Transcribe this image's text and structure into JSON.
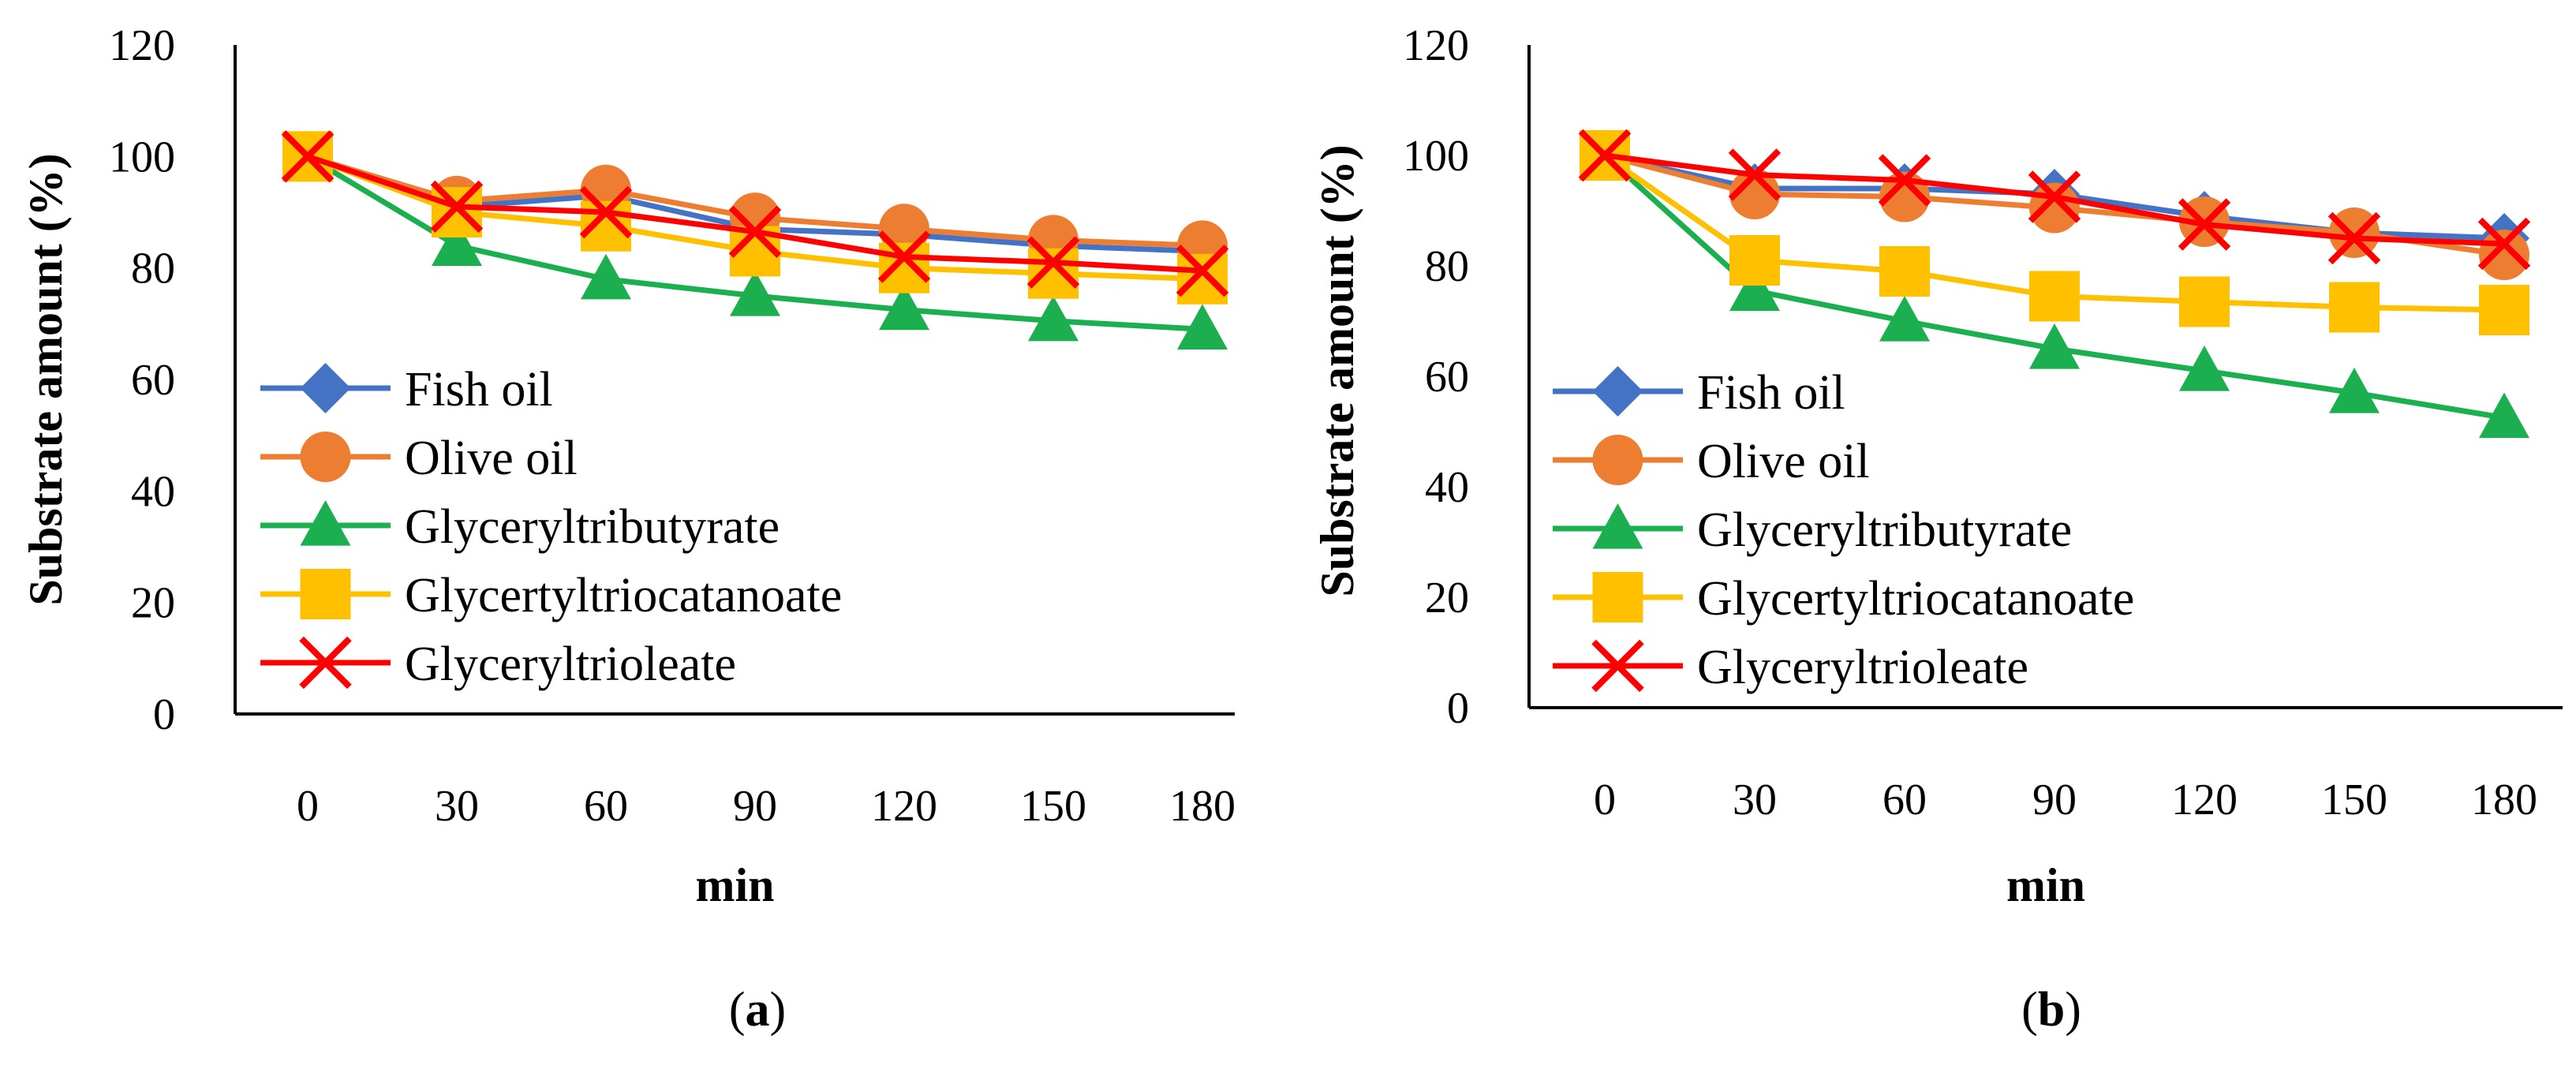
{
  "panels": [
    {
      "caption_letter": "a",
      "chart_data": {
        "type": "line",
        "title": "",
        "xlabel": "min",
        "ylabel": "Substrate amount (%)",
        "categories": [
          "0",
          "30",
          "60",
          "90",
          "120",
          "150",
          "180"
        ],
        "ylim": [
          0,
          120
        ],
        "yticks": [
          "0",
          "20",
          "40",
          "60",
          "80",
          "100",
          "120"
        ],
        "grid": false,
        "legend_position": "left",
        "series": [
          {
            "name": "Fish oil",
            "color": "#4472C4",
            "marker": "diamond",
            "values": [
              100,
              91,
              93,
              87,
              86,
              84,
              83
            ]
          },
          {
            "name": "Olive oil",
            "color": "#ED7D31",
            "marker": "circle",
            "values": [
              100,
              92,
              94,
              89,
              87,
              85,
              84
            ]
          },
          {
            "name": "Glyceryltributyrate",
            "color": "#1BAF50",
            "marker": "triangle",
            "values": [
              100,
              84,
              78,
              75,
              72.5,
              70.5,
              69
            ]
          },
          {
            "name": "Glycertyltriocatanoate",
            "color": "#FFC000",
            "marker": "square",
            "values": [
              100,
              90,
              87.5,
              83,
              80,
              79,
              78
            ]
          },
          {
            "name": "Glyceryltrioleate",
            "color": "#FF0000",
            "marker": "x",
            "values": [
              100,
              91,
              90,
              86.5,
              82,
              81,
              79.5
            ]
          }
        ]
      }
    },
    {
      "caption_letter": "b",
      "chart_data": {
        "type": "line",
        "title": "",
        "xlabel": "min",
        "ylabel": "Substrate amount (%)",
        "categories": [
          "0",
          "30",
          "60",
          "90",
          "120",
          "150",
          "180"
        ],
        "ylim": [
          0,
          120
        ],
        "yticks": [
          "0",
          "20",
          "40",
          "60",
          "80",
          "100",
          "120"
        ],
        "grid": false,
        "legend_position": "left",
        "series": [
          {
            "name": "Fish oil",
            "color": "#4472C4",
            "marker": "diamond",
            "values": [
              100,
              94,
              94,
              93,
              89,
              86,
              85
            ]
          },
          {
            "name": "Olive oil",
            "color": "#ED7D31",
            "marker": "circle",
            "values": [
              100,
              93,
              92.5,
              90.5,
              88,
              86,
              82
            ]
          },
          {
            "name": "Glyceryltributyrate",
            "color": "#1BAF50",
            "marker": "triangle",
            "values": [
              100,
              75.5,
              70,
              65,
              61,
              57,
              52.5
            ]
          },
          {
            "name": "Glycertyltriocatanoate",
            "color": "#FFC000",
            "marker": "square",
            "values": [
              100,
              81,
              79,
              74.5,
              73.5,
              72.5,
              72
            ]
          },
          {
            "name": "Glyceryltrioleate",
            "color": "#FF0000",
            "marker": "x",
            "values": [
              100,
              96.5,
              95.5,
              92.5,
              87.5,
              85,
              84
            ]
          }
        ]
      }
    }
  ]
}
